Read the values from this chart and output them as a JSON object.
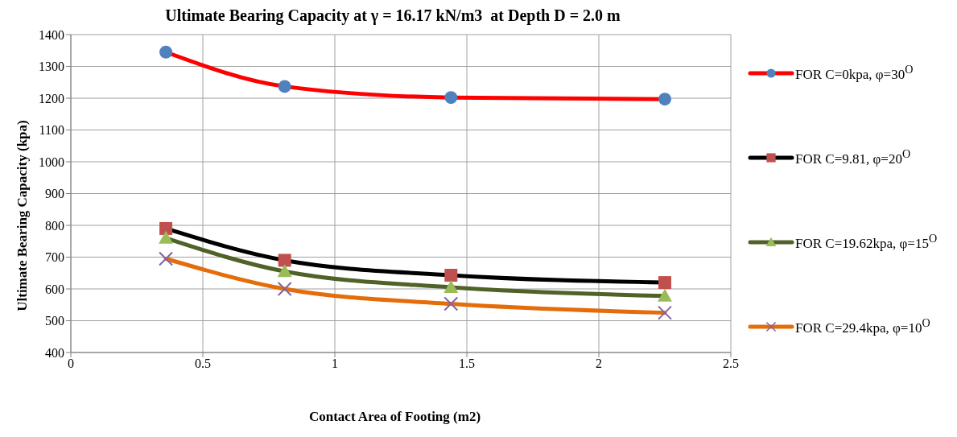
{
  "chart_data": {
    "type": "line",
    "title": "Ultimate Bearing Capacity at γ = 16.17 kN/m3  at Depth D = 2.0 m",
    "xlabel": "Contact Area of Footing (m2)",
    "ylabel": "Ultimate Bearing Capacity (kpa)",
    "x": [
      0.36,
      0.81,
      1.44,
      2.25
    ],
    "series": [
      {
        "name": "FOR C=0kpa, φ=30$^{O}$",
        "color": "#ff0000",
        "colors": [
          "#4f81bd",
          "#4f81bd",
          "#4f81bd",
          "#4f81bd"
        ],
        "marker": "circle",
        "values": [
          1345,
          1237,
          1202,
          1197
        ]
      },
      {
        "name": "FOR C=9.81, φ=20$^{O}$",
        "color": "#000000",
        "colors": [
          "#c0504d",
          "#c0504d",
          "#c0504d",
          "#c0504d"
        ],
        "marker": "square",
        "values": [
          790,
          690,
          643,
          620
        ]
      },
      {
        "name": "FOR C=19.62kpa, φ=15$^{O}$",
        "color": "#4f6228",
        "colors": [
          "#9bbb59",
          "#9bbb59",
          "#9bbb59",
          "#9bbb59"
        ],
        "marker": "triangle",
        "values": [
          760,
          655,
          605,
          578
        ]
      },
      {
        "name": "FOR C=29.4kpa, φ=10$^{O}$",
        "color": "#e46c0a",
        "colors": [
          "#8064a2",
          "#8064a2",
          "#8064a2",
          "#8064a2"
        ],
        "marker": "cross",
        "values": [
          695,
          600,
          553,
          525
        ]
      }
    ],
    "xlim": [
      0,
      2.5
    ],
    "xticks": [
      0,
      0.5,
      1,
      1.5,
      2,
      2.5
    ],
    "ylim": [
      400,
      1400
    ],
    "yticks": [
      400,
      500,
      600,
      700,
      800,
      900,
      1000,
      1100,
      1200,
      1300,
      1400
    ],
    "grid": true,
    "legend": "right"
  }
}
